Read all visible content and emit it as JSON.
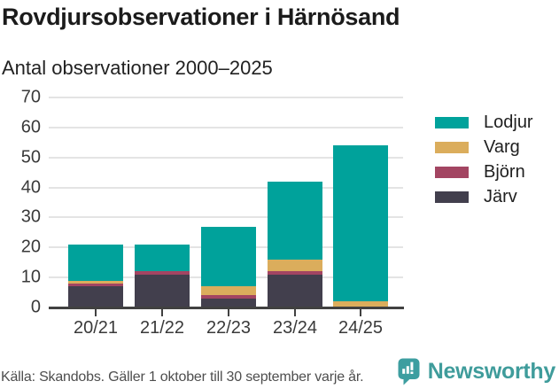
{
  "title": "Rovdjursobservationer i Härnösand",
  "subtitle": "Antal observationer 2000–2025",
  "source": "Källa: Skandobs. Gäller 1 oktober till 30 september varje år.",
  "brand": {
    "name": "Newsworthy",
    "icon": "bar-chart-speech-bubble-icon",
    "text_color": "#3f9c9b",
    "icon_color": "#3d9ea0"
  },
  "colors": {
    "gridline": "#e4e4e4",
    "axis": "#414141",
    "tick_label": "#3a3a3a"
  },
  "chart_data": {
    "type": "bar",
    "stacked": true,
    "title": "Rovdjursobservationer i Härnösand",
    "subtitle": "Antal observationer 2000–2025",
    "categories": [
      "20/21",
      "21/22",
      "22/23",
      "23/24",
      "24/25"
    ],
    "series": [
      {
        "name": "Lodjur",
        "color": "#00a29b",
        "values": [
          12,
          9,
          20,
          26,
          52
        ]
      },
      {
        "name": "Varg",
        "color": "#dbad5c",
        "values": [
          1,
          0,
          3,
          4,
          2
        ]
      },
      {
        "name": "Björn",
        "color": "#a34562",
        "values": [
          1,
          1,
          1,
          1,
          0
        ]
      },
      {
        "name": "Järv",
        "color": "#423f4d",
        "values": [
          7,
          11,
          3,
          11,
          0
        ]
      }
    ],
    "stack_order_bottom_to_top": [
      "Järv",
      "Björn",
      "Varg",
      "Lodjur"
    ],
    "totals": [
      21,
      21,
      27,
      42,
      54
    ],
    "y_ticks": [
      0,
      10,
      20,
      30,
      40,
      50,
      60,
      70
    ],
    "ylim": [
      0,
      70
    ],
    "xlabel": "",
    "ylabel": "Antal observationer",
    "grid": true,
    "legend_position": "right"
  }
}
